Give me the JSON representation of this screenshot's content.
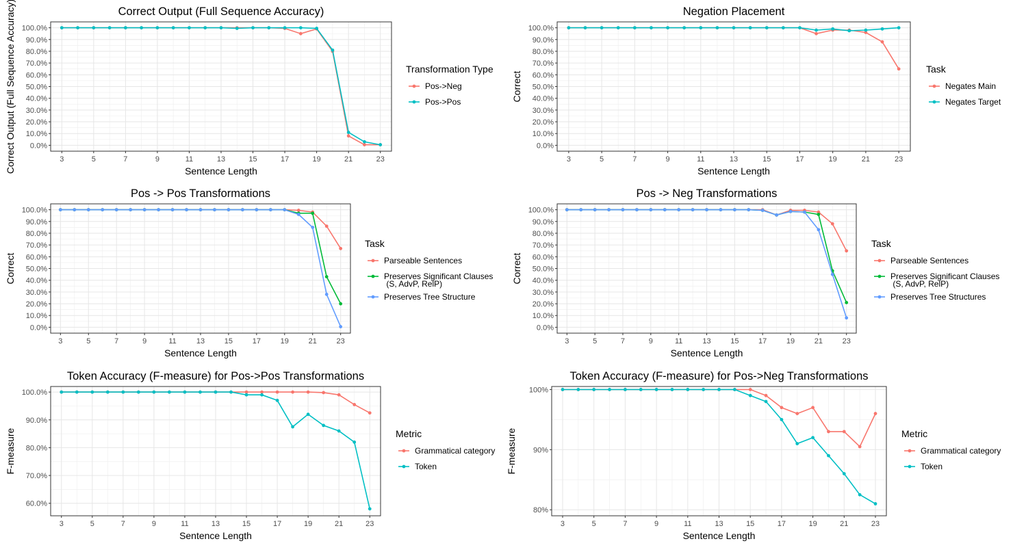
{
  "chart_data": [
    {
      "id": "p1",
      "type": "line",
      "title": "Correct Output  (Full Sequence Accuracy)",
      "xlabel": "Sentence Length",
      "ylabel": "Correct Output (Full Sequence Accuracy)",
      "xlim": [
        2.3,
        23.7
      ],
      "ylim": [
        -0.05,
        1.05
      ],
      "xticks": [
        3,
        5,
        7,
        9,
        11,
        13,
        15,
        17,
        19,
        21,
        23
      ],
      "yticks": [
        0,
        0.1,
        0.2,
        0.3,
        0.4,
        0.5,
        0.6,
        0.7,
        0.8,
        0.9,
        1.0
      ],
      "ytick_labels": [
        "0.0%",
        "10.0%",
        "20.0%",
        "30.0%",
        "40.0%",
        "50.0%",
        "60.0%",
        "70.0%",
        "80.0%",
        "90.0%",
        "100.0%"
      ],
      "legend_title": "Transformation Type",
      "legend_position": "right",
      "grid": true,
      "x": [
        3,
        4,
        5,
        6,
        7,
        8,
        9,
        10,
        11,
        12,
        13,
        14,
        15,
        16,
        17,
        18,
        19,
        20,
        21,
        22,
        23
      ],
      "series": [
        {
          "name": "Pos->Neg",
          "color": "#F8766D",
          "values": [
            1,
            1,
            1,
            1,
            1,
            1,
            1,
            1,
            1,
            1,
            1,
            1,
            1,
            1,
            0.995,
            0.95,
            0.99,
            0.8,
            0.08,
            0.005,
            0.005
          ]
        },
        {
          "name": "Pos->Pos",
          "color": "#00BFC4",
          "values": [
            1,
            1,
            1,
            1,
            1,
            1,
            1,
            1,
            1,
            1,
            1,
            0.995,
            1,
            1,
            1,
            1,
            0.995,
            0.81,
            0.11,
            0.03,
            0.005
          ]
        }
      ]
    },
    {
      "id": "p2",
      "type": "line",
      "title": "Negation Placement",
      "xlabel": "Sentence Length",
      "ylabel": "Correct",
      "xlim": [
        2.3,
        23.7
      ],
      "ylim": [
        -0.05,
        1.05
      ],
      "xticks": [
        3,
        5,
        7,
        9,
        11,
        13,
        15,
        17,
        19,
        21,
        23
      ],
      "yticks": [
        0,
        0.1,
        0.2,
        0.3,
        0.4,
        0.5,
        0.6,
        0.7,
        0.8,
        0.9,
        1.0
      ],
      "ytick_labels": [
        "0.0%",
        "10.0%",
        "20.0%",
        "30.0%",
        "40.0%",
        "50.0%",
        "60.0%",
        "70.0%",
        "80.0%",
        "90.0%",
        "100.0%"
      ],
      "legend_title": "Task",
      "legend_position": "right",
      "grid": true,
      "x": [
        3,
        4,
        5,
        6,
        7,
        8,
        9,
        10,
        11,
        12,
        13,
        14,
        15,
        16,
        17,
        18,
        19,
        20,
        21,
        22,
        23
      ],
      "series": [
        {
          "name": "Negates Main",
          "color": "#F8766D",
          "values": [
            1,
            1,
            1,
            1,
            1,
            1,
            1,
            1,
            1,
            1,
            1,
            1,
            1,
            1,
            1,
            0.95,
            0.98,
            0.98,
            0.96,
            0.88,
            0.65
          ]
        },
        {
          "name": "Negates Target",
          "color": "#00BFC4",
          "values": [
            1,
            1,
            1,
            1,
            1,
            1,
            1,
            1,
            1,
            1,
            1,
            1,
            1,
            1,
            1,
            0.98,
            0.99,
            0.975,
            0.98,
            0.99,
            1
          ]
        }
      ]
    },
    {
      "id": "p3",
      "type": "line",
      "title": "Pos -> Pos Transformations",
      "xlabel": "Sentence Length",
      "ylabel": "Correct",
      "xlim": [
        2.3,
        23.7
      ],
      "ylim": [
        -0.05,
        1.05
      ],
      "xticks": [
        3,
        5,
        7,
        9,
        11,
        13,
        15,
        17,
        19,
        21,
        23
      ],
      "yticks": [
        0,
        0.1,
        0.2,
        0.3,
        0.4,
        0.5,
        0.6,
        0.7,
        0.8,
        0.9,
        1.0
      ],
      "ytick_labels": [
        "0.0%",
        "10.0%",
        "20.0%",
        "30.0%",
        "40.0%",
        "50.0%",
        "60.0%",
        "70.0%",
        "80.0%",
        "90.0%",
        "100.0%"
      ],
      "legend_title": "Task",
      "legend_position": "right",
      "grid": true,
      "x": [
        3,
        4,
        5,
        6,
        7,
        8,
        9,
        10,
        11,
        12,
        13,
        14,
        15,
        16,
        17,
        18,
        19,
        20,
        21,
        22,
        23
      ],
      "series": [
        {
          "name": "Parseable Sentences",
          "color": "#F8766D",
          "values": [
            1,
            1,
            1,
            1,
            1,
            1,
            1,
            1,
            1,
            1,
            1,
            1,
            1,
            1,
            1,
            1,
            1,
            0.995,
            0.98,
            0.86,
            0.67
          ]
        },
        {
          "name": "Preserves Significant Clauses\n (S, AdvP, RelP)",
          "color": "#00BA38",
          "values": [
            1,
            1,
            1,
            1,
            1,
            1,
            1,
            1,
            1,
            1,
            1,
            1,
            1,
            1,
            1,
            1,
            1,
            0.97,
            0.97,
            0.43,
            0.2
          ]
        },
        {
          "name": "Preserves Tree Structure",
          "color": "#619CFF",
          "values": [
            1,
            1,
            1,
            1,
            1,
            1,
            1,
            1,
            1,
            1,
            1,
            1,
            1,
            1,
            1,
            1,
            1,
            0.96,
            0.85,
            0.28,
            0.005
          ]
        }
      ]
    },
    {
      "id": "p4",
      "type": "line",
      "title": "Pos -> Neg Transformations",
      "xlabel": "Sentence Length",
      "ylabel": "Correct",
      "xlim": [
        2.3,
        23.7
      ],
      "ylim": [
        -0.05,
        1.05
      ],
      "xticks": [
        3,
        5,
        7,
        9,
        11,
        13,
        15,
        17,
        19,
        21,
        23
      ],
      "yticks": [
        0,
        0.1,
        0.2,
        0.3,
        0.4,
        0.5,
        0.6,
        0.7,
        0.8,
        0.9,
        1.0
      ],
      "ytick_labels": [
        "0.0%",
        "10.0%",
        "20.0%",
        "30.0%",
        "40.0%",
        "50.0%",
        "60.0%",
        "70.0%",
        "80.0%",
        "90.0%",
        "100.0%"
      ],
      "legend_title": "Task",
      "legend_position": "right",
      "grid": true,
      "x": [
        3,
        4,
        5,
        6,
        7,
        8,
        9,
        10,
        11,
        12,
        13,
        14,
        15,
        16,
        17,
        18,
        19,
        20,
        21,
        22,
        23
      ],
      "series": [
        {
          "name": "Parseable Sentences",
          "color": "#F8766D",
          "values": [
            1,
            1,
            1,
            1,
            1,
            1,
            1,
            1,
            1,
            1,
            1,
            1,
            1,
            1,
            1,
            0.955,
            0.995,
            0.995,
            0.98,
            0.88,
            0.65
          ]
        },
        {
          "name": "Preserves Significant Clauses\n (S, AdvP, RelP)",
          "color": "#00BA38",
          "values": [
            1,
            1,
            1,
            1,
            1,
            1,
            1,
            1,
            1,
            1,
            1,
            1,
            1,
            1,
            0.995,
            0.955,
            0.985,
            0.98,
            0.96,
            0.48,
            0.21
          ]
        },
        {
          "name": "Preserves Tree Structures",
          "color": "#619CFF",
          "values": [
            1,
            1,
            1,
            1,
            1,
            1,
            1,
            1,
            1,
            1,
            1,
            1,
            1,
            1,
            0.995,
            0.955,
            0.985,
            0.98,
            0.83,
            0.45,
            0.08
          ]
        }
      ]
    },
    {
      "id": "p5",
      "type": "line",
      "title": "Token Accuracy (F-measure) for Pos->Pos Transformations",
      "xlabel": "Sentence Length",
      "ylabel": "F-measure",
      "xlim": [
        2.3,
        23.7
      ],
      "ylim": [
        0.555,
        1.02
      ],
      "xticks": [
        3,
        5,
        7,
        9,
        11,
        13,
        15,
        17,
        19,
        21,
        23
      ],
      "yticks": [
        0.6,
        0.7,
        0.8,
        0.9,
        1.0
      ],
      "ytick_labels": [
        "60.0%",
        "70.0%",
        "80.0%",
        "90.0%",
        "100.0%"
      ],
      "legend_title": "Metric",
      "legend_position": "right",
      "grid": true,
      "x": [
        3,
        4,
        5,
        6,
        7,
        8,
        9,
        10,
        11,
        12,
        13,
        14,
        15,
        16,
        17,
        18,
        19,
        20,
        21,
        22,
        23
      ],
      "series": [
        {
          "name": "Grammatical category",
          "color": "#F8766D",
          "values": [
            1,
            1,
            1,
            1,
            1,
            1,
            1,
            1,
            1,
            1,
            1,
            1,
            1,
            1,
            1,
            1,
            1,
            0.998,
            0.99,
            0.955,
            0.925
          ]
        },
        {
          "name": "Token",
          "color": "#00BFC4",
          "values": [
            1,
            1,
            1,
            1,
            1,
            1,
            1,
            1,
            1,
            1,
            1,
            1,
            0.99,
            0.99,
            0.97,
            0.875,
            0.92,
            0.88,
            0.86,
            0.82,
            0.58
          ]
        }
      ]
    },
    {
      "id": "p6",
      "type": "line",
      "title": "Token Accuracy (F-measure) for Pos->Neg Transformations",
      "xlabel": "Sentence Length",
      "ylabel": "F-measure",
      "xlim": [
        2.3,
        23.7
      ],
      "ylim": [
        0.79,
        1.005
      ],
      "xticks": [
        3,
        5,
        7,
        9,
        11,
        13,
        15,
        17,
        19,
        21,
        23
      ],
      "yticks": [
        0.8,
        0.9,
        1.0
      ],
      "ytick_labels": [
        "80%",
        "90%",
        "100%"
      ],
      "legend_title": "Metric",
      "legend_position": "right",
      "grid": true,
      "x": [
        3,
        4,
        5,
        6,
        7,
        8,
        9,
        10,
        11,
        12,
        13,
        14,
        15,
        16,
        17,
        18,
        19,
        20,
        21,
        22,
        23
      ],
      "series": [
        {
          "name": "Grammatical category",
          "color": "#F8766D",
          "values": [
            1,
            1,
            1,
            1,
            1,
            1,
            1,
            1,
            1,
            1,
            1,
            1,
            1,
            0.99,
            0.97,
            0.96,
            0.97,
            0.93,
            0.93,
            0.905,
            0.96
          ]
        },
        {
          "name": "Token",
          "color": "#00BFC4",
          "values": [
            1,
            1,
            1,
            1,
            1,
            1,
            1,
            1,
            1,
            1,
            1,
            1,
            0.99,
            0.98,
            0.95,
            0.91,
            0.92,
            0.89,
            0.86,
            0.825,
            0.81
          ]
        }
      ]
    }
  ]
}
